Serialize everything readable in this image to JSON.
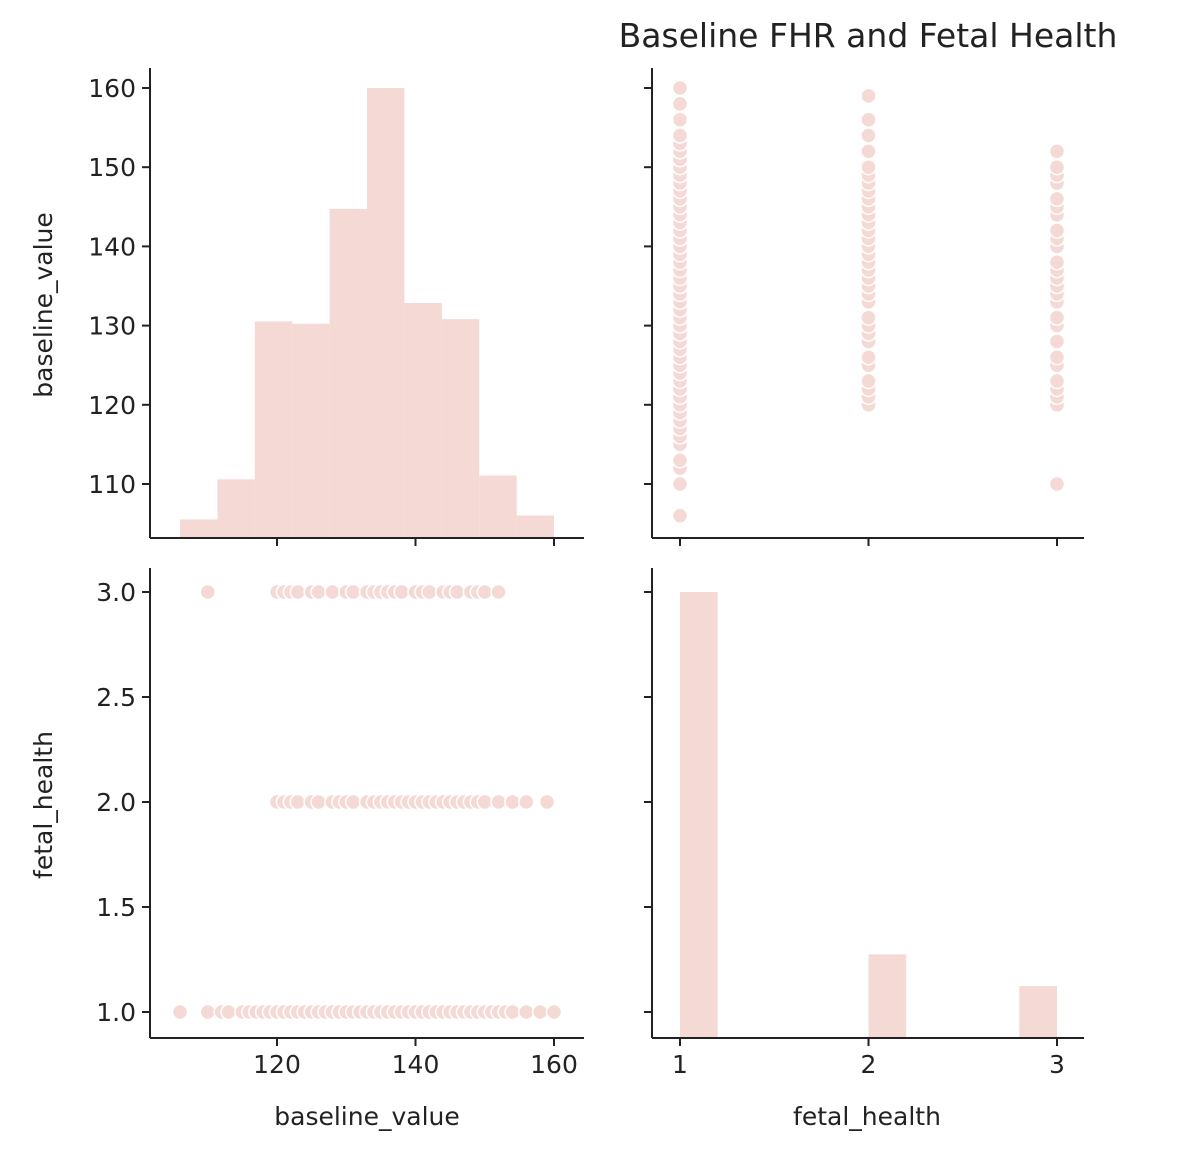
{
  "chart_data": {
    "type": "pairplot",
    "title": "Baseline FHR and Fetal Health",
    "variables": [
      "baseline_value",
      "fetal_health"
    ],
    "color": "#f4d9d5",
    "marker_edge": "#ffffff",
    "axis_labels": {
      "x": [
        "baseline_value",
        "fetal_health"
      ],
      "y": [
        "baseline_value",
        "fetal_health"
      ]
    },
    "ticks": {
      "baseline_value_y": [
        "160",
        "150",
        "140",
        "130",
        "120",
        "110"
      ],
      "baseline_value_x": [
        "120",
        "140",
        "160"
      ],
      "fetal_health_y": [
        "3.0",
        "2.5",
        "2.0",
        "1.5",
        "1.0"
      ],
      "fetal_health_x": [
        "1",
        "2",
        "3"
      ]
    },
    "ranges": {
      "baseline_value": [
        103,
        163
      ],
      "fetal_health": [
        0.9,
        3.1
      ]
    },
    "histogram_baseline_value": {
      "bin_edges": [
        106,
        111.4,
        116.8,
        122.2,
        127.6,
        133,
        138.4,
        143.8,
        149.2,
        154.6,
        160
      ],
      "counts": [
        26,
        78,
        283,
        280,
        429,
        586,
        307,
        286,
        83,
        31
      ],
      "note_scale": "counts shown relative to y-axis (160 ≈ top bin)"
    },
    "histogram_fetal_health": {
      "bin_edges": [
        1.0,
        1.2,
        1.4,
        1.6,
        1.8,
        2.0,
        2.2,
        2.4,
        2.6,
        2.8,
        3.0
      ],
      "counts": [
        1655,
        0,
        0,
        0,
        0,
        295,
        0,
        0,
        0,
        176
      ]
    },
    "scatter_fetal_vs_baseline": [
      {
        "fetal_health": 3,
        "baseline_value": [
          110,
          120,
          121,
          122,
          123,
          125,
          126,
          128,
          130,
          131,
          133,
          134,
          135,
          136,
          137,
          138,
          140,
          141,
          142,
          144,
          145,
          146,
          148,
          149,
          150,
          152
        ]
      },
      {
        "fetal_health": 2,
        "baseline_value": [
          120,
          121,
          122,
          123,
          125,
          126,
          128,
          129,
          130,
          131,
          133,
          134,
          135,
          136,
          137,
          138,
          139,
          140,
          141,
          142,
          143,
          144,
          145,
          146,
          147,
          148,
          149,
          150,
          152,
          154,
          156,
          159
        ]
      },
      {
        "fetal_health": 1,
        "baseline_value": [
          106,
          110,
          112,
          113,
          115,
          116,
          117,
          118,
          119,
          120,
          121,
          122,
          123,
          124,
          125,
          126,
          127,
          128,
          129,
          130,
          131,
          132,
          133,
          134,
          135,
          136,
          137,
          138,
          139,
          140,
          141,
          142,
          143,
          144,
          145,
          146,
          147,
          148,
          149,
          150,
          151,
          152,
          153,
          154,
          156,
          158,
          160
        ]
      }
    ]
  }
}
